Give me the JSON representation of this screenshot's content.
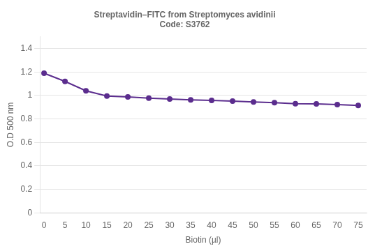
{
  "chart_data": {
    "type": "line",
    "title": "Streptavidin–FITC from Streptomyces avidinii",
    "subtitle": "Code: S3762",
    "x_label": "Biotin (µl)",
    "y_label": "O.D 500 nm",
    "x": [
      0,
      5,
      10,
      15,
      20,
      25,
      30,
      35,
      40,
      45,
      50,
      55,
      60,
      65,
      70,
      75
    ],
    "values": [
      1.19,
      1.12,
      1.04,
      0.995,
      0.988,
      0.978,
      0.97,
      0.963,
      0.958,
      0.952,
      0.945,
      0.938,
      0.93,
      0.928,
      0.922,
      0.915
    ],
    "color": "#5b2d8e",
    "marker": "circle",
    "xlim": [
      -1,
      77
    ],
    "xticks": [
      0,
      5,
      10,
      15,
      20,
      25,
      30,
      35,
      40,
      45,
      50,
      55,
      60,
      65,
      70,
      75
    ],
    "ylim": [
      0,
      1.5
    ],
    "yticks": [
      0,
      0.2,
      0.4,
      0.6,
      0.8,
      1,
      1.2,
      1.4
    ],
    "grid": true
  }
}
